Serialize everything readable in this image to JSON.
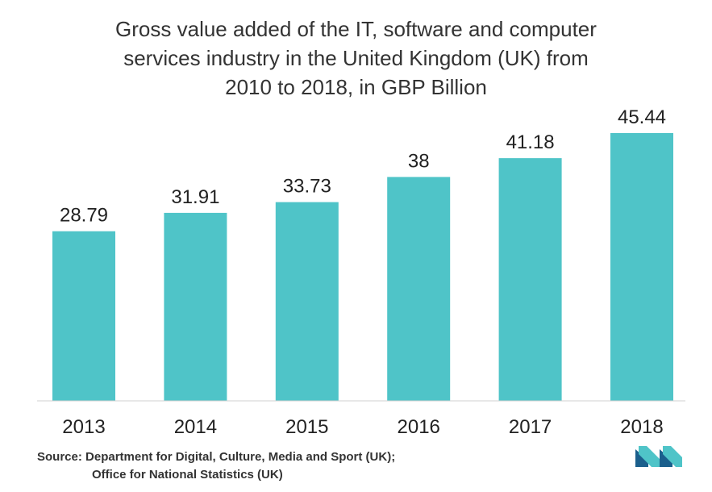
{
  "chart_data": {
    "type": "bar",
    "title_lines": [
      "Gross value added of the IT, software and computer",
      "services industry in the United Kingdom (UK) from",
      "2010 to 2018, in GBP Billion"
    ],
    "categories": [
      "2013",
      "2014",
      "2015",
      "2016",
      "2017",
      "2018"
    ],
    "values": [
      28.79,
      31.91,
      33.73,
      38,
      41.18,
      45.44
    ],
    "value_labels": [
      "28.79",
      "31.91",
      "33.73",
      "38",
      "41.18",
      "45.44"
    ],
    "xlabel": "",
    "ylabel": "",
    "ylim": [
      0,
      45.44
    ],
    "grid": false,
    "bar_color": "#4fc4c8"
  },
  "source": {
    "line1": "Source: Department for Digital, Culture, Media and Sport (UK);",
    "line2": "Office for National Statistics (UK)"
  },
  "logo": {
    "icon": "mordor-logo-icon",
    "colors": [
      "#1b5f8c",
      "#4fc4c8"
    ]
  }
}
